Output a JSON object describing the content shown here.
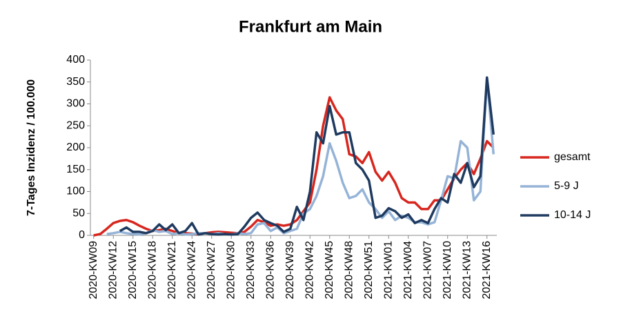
{
  "chart_data": {
    "type": "line",
    "title": "Frankfurt am Main",
    "ylabel": "7-Tages Inzidenz / 100.000",
    "categories": [
      "2020-KW09",
      null,
      null,
      "2020-KW12",
      null,
      null,
      "2020-KW15",
      null,
      null,
      "2020-KW18",
      null,
      null,
      "2020-KW21",
      null,
      null,
      "2020-KW24",
      null,
      null,
      "2020-KW27",
      null,
      null,
      "2020-KW30",
      null,
      null,
      "2020-KW33",
      null,
      null,
      "2020-KW36",
      null,
      null,
      "2020-KW39",
      null,
      null,
      "2020-KW42",
      null,
      null,
      "2020-KW45",
      null,
      null,
      "2020-KW48",
      null,
      null,
      "2020-KW51",
      null,
      null,
      "2021-KW01",
      null,
      null,
      "2021-KW04",
      null,
      null,
      "2021-KW07",
      null,
      null,
      "2021-KW10",
      null,
      null,
      "2021-KW13",
      null,
      null,
      "2021-KW16",
      null
    ],
    "series": [
      {
        "name": "gesamt",
        "color": "#d7261e",
        "values": [
          0,
          3,
          15,
          28,
          33,
          35,
          30,
          22,
          15,
          10,
          12,
          15,
          10,
          5,
          5,
          4,
          3,
          5,
          7,
          8,
          7,
          6,
          5,
          8,
          20,
          35,
          30,
          22,
          25,
          22,
          25,
          35,
          55,
          75,
          150,
          250,
          315,
          285,
          265,
          185,
          180,
          165,
          190,
          145,
          125,
          145,
          120,
          85,
          75,
          75,
          60,
          60,
          80,
          80,
          105,
          130,
          150,
          165,
          140,
          175,
          215,
          200
        ]
      },
      {
        "name": "5-9 J",
        "color": "#95b3d7",
        "values": [
          null,
          null,
          3,
          5,
          8,
          5,
          3,
          2,
          5,
          12,
          8,
          10,
          3,
          5,
          2,
          3,
          5,
          5,
          3,
          5,
          3,
          2,
          5,
          3,
          5,
          25,
          28,
          10,
          18,
          5,
          10,
          15,
          50,
          60,
          90,
          135,
          210,
          170,
          120,
          85,
          90,
          105,
          75,
          60,
          40,
          55,
          35,
          45,
          40,
          30,
          30,
          25,
          30,
          80,
          135,
          130,
          215,
          200,
          80,
          100,
          360,
          185
        ]
      },
      {
        "name": "10-14 J",
        "color": "#1f3a5f",
        "values": [
          null,
          null,
          null,
          null,
          10,
          18,
          8,
          8,
          5,
          10,
          25,
          12,
          25,
          5,
          10,
          28,
          2,
          5,
          3,
          2,
          3,
          2,
          3,
          20,
          40,
          52,
          35,
          28,
          22,
          8,
          15,
          65,
          35,
          100,
          235,
          210,
          295,
          230,
          235,
          235,
          165,
          150,
          125,
          40,
          45,
          62,
          55,
          40,
          48,
          28,
          35,
          28,
          60,
          85,
          75,
          140,
          120,
          165,
          110,
          135,
          360,
          230
        ]
      }
    ],
    "ylim": [
      0,
      400
    ],
    "yticks": [
      0,
      50,
      100,
      150,
      200,
      250,
      300,
      350,
      400
    ],
    "legend": "right"
  }
}
